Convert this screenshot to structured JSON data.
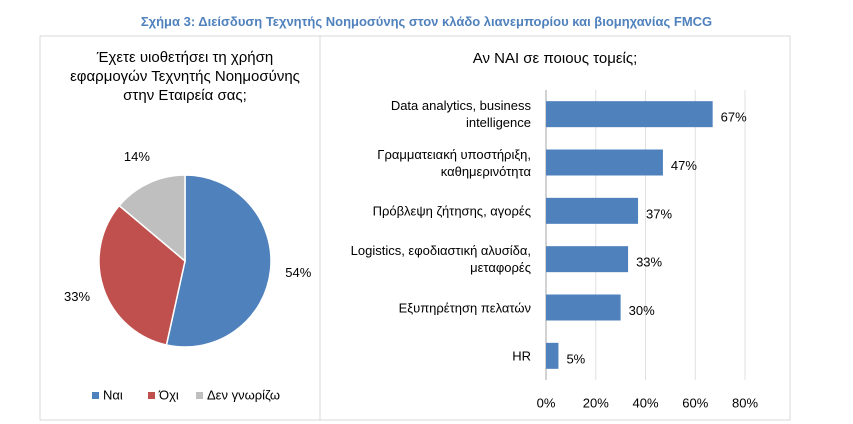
{
  "caption": "Σχήμα 3: Διείσδυση Τεχνητής Νοημοσύνης στον κλάδο λιανεμπορίου και βιομηχανίας FMCG",
  "chart_data": [
    {
      "type": "pie",
      "title": "Έχετε υιοθετήσει τη χρήση εφαρμογών Τεχνητής Νοημοσύνης στην Εταιρεία σας;",
      "categories": [
        "Ναι",
        "Όχι",
        "Δεν γνωρίζω"
      ],
      "values": [
        54,
        33,
        14
      ],
      "value_labels": [
        "54%",
        "33%",
        "14%"
      ],
      "colors": [
        "#4f81bd",
        "#c0504d",
        "#bfbfbf"
      ],
      "legend": "bottom"
    },
    {
      "type": "hbar",
      "title": "Αν ΝΑΙ σε ποιους τομείς;",
      "categories": [
        "Data analytics, business intelligence",
        "Γραμματειακή υποστήριξη, καθημερινότητα",
        "Πρόβλεψη ζήτησης, αγορές",
        "Logistics, εφοδιαστική αλυσίδα, μεταφορές",
        "Εξυπηρέτηση πελατών",
        "HR"
      ],
      "values": [
        67,
        47,
        37,
        33,
        30,
        5
      ],
      "value_labels": [
        "67%",
        "47%",
        "37%",
        "33%",
        "30%",
        "5%"
      ],
      "color": "#4f81bd",
      "xlim": [
        0,
        80
      ],
      "xticks": [
        {
          "value": 0,
          "label": "0%"
        },
        {
          "value": 20,
          "label": "20%"
        },
        {
          "value": 40,
          "label": "40%"
        },
        {
          "value": 60,
          "label": "60%"
        },
        {
          "value": 80,
          "label": "80%"
        }
      ],
      "grid": true
    }
  ]
}
